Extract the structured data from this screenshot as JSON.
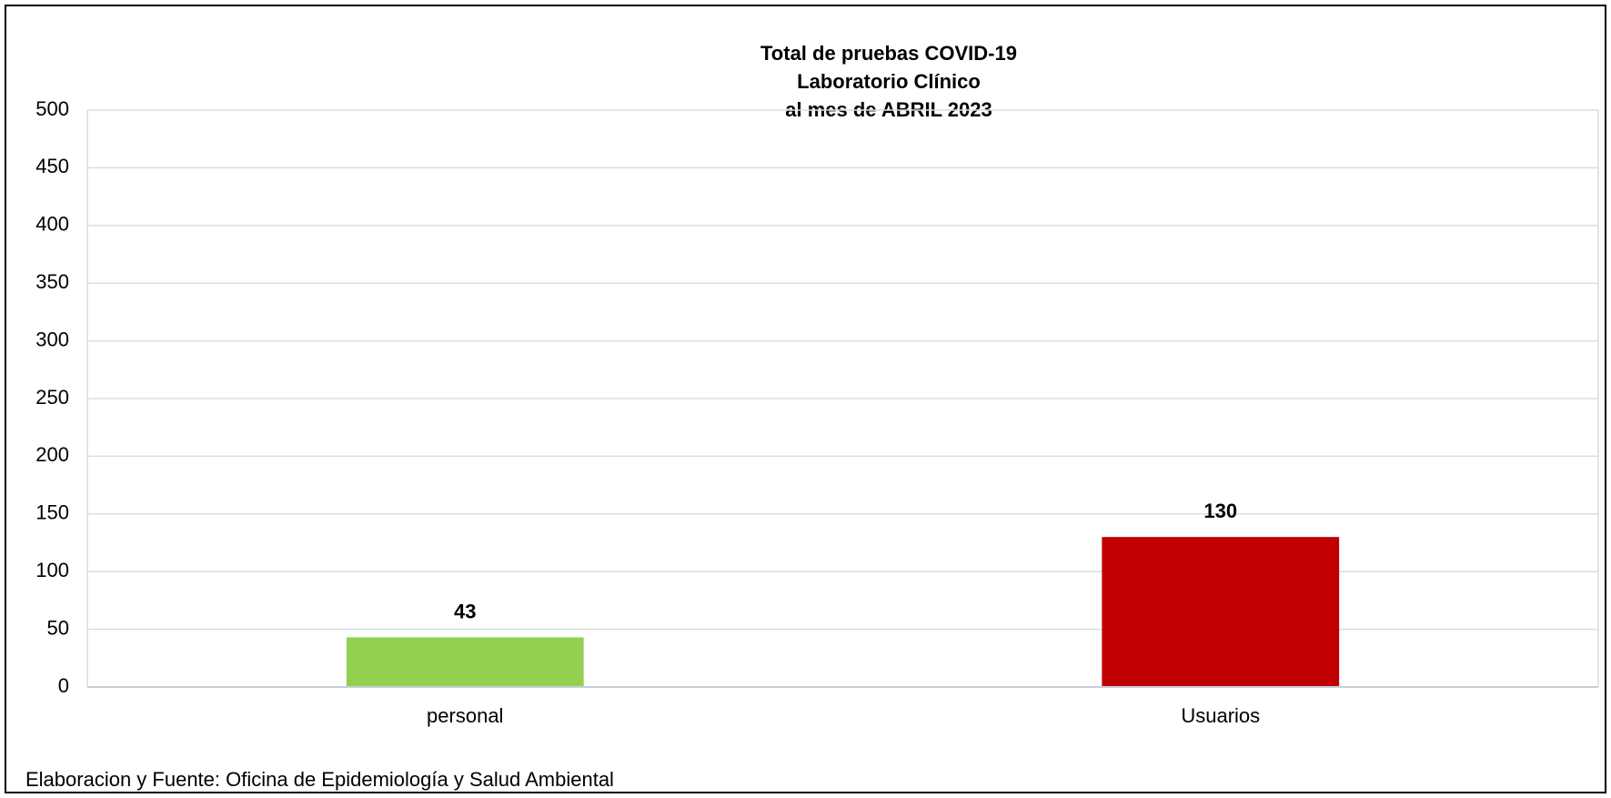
{
  "chart_data": {
    "type": "bar",
    "title": [
      "Total de pruebas COVID-19",
      "Laboratorio Clínico",
      "al mes de ABRIL 2023"
    ],
    "categories": [
      "personal",
      "Usuarios"
    ],
    "values": [
      43,
      130
    ],
    "colors": [
      "#92d050",
      "#c00000"
    ],
    "ylim": [
      0,
      500
    ],
    "yticks": [
      0,
      50,
      100,
      150,
      200,
      250,
      300,
      350,
      400,
      450,
      500
    ],
    "grid": true,
    "source": "Elaboracion y Fuente: Oficina de Epidemiología y Salud Ambiental"
  }
}
